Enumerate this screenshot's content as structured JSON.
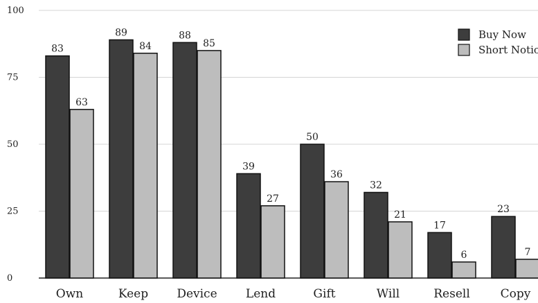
{
  "chart_data": {
    "type": "bar",
    "categories": [
      "Own",
      "Keep",
      "Device",
      "Lend",
      "Gift",
      "Will",
      "Resell",
      "Copy"
    ],
    "series": [
      {
        "name": "Buy Now",
        "values": [
          83,
          89,
          88,
          39,
          50,
          32,
          17,
          23
        ],
        "color": "#3d3d3d"
      },
      {
        "name": "Short Notice",
        "values": [
          63,
          84,
          85,
          27,
          36,
          21,
          6,
          7
        ],
        "color": "#bdbdbd"
      }
    ],
    "yticks": [
      0,
      25,
      50,
      75,
      100
    ],
    "ylim": [
      0,
      100
    ],
    "grid": true,
    "legend_position": "top-right",
    "bar_outline": "#111111"
  }
}
